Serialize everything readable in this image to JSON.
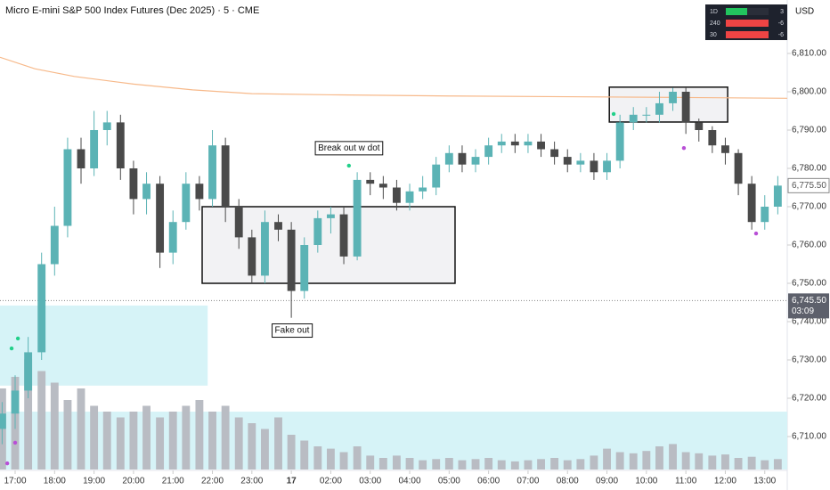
{
  "header": {
    "title": "Micro E-mini S&P 500 Index Futures (Dec 2025) · 5 · CME",
    "currency": "USD"
  },
  "widget": {
    "rows": [
      {
        "label": "1D",
        "value": 3,
        "color": "#22c55e"
      },
      {
        "label": "240",
        "value": -6,
        "color": "#ef4444"
      },
      {
        "label": "30",
        "value": -6,
        "color": "#ef4444"
      }
    ]
  },
  "chart_data": {
    "type": "candlestick",
    "xlim": [
      -0.384,
      19.57
    ],
    "ylim": [
      6701.4,
      6823.95
    ],
    "xticks": [
      {
        "value": 0,
        "label": "17:00"
      },
      {
        "value": 1,
        "label": "18:00"
      },
      {
        "value": 2,
        "label": "19:00"
      },
      {
        "value": 3,
        "label": "20:00"
      },
      {
        "value": 4,
        "label": "21:00"
      },
      {
        "value": 5,
        "label": "22:00"
      },
      {
        "value": 6,
        "label": "23:00"
      },
      {
        "value": 7,
        "label": "17"
      },
      {
        "value": 8,
        "label": "02:00"
      },
      {
        "value": 9,
        "label": "03:00"
      },
      {
        "value": 10,
        "label": "04:00"
      },
      {
        "value": 11,
        "label": "05:00"
      },
      {
        "value": 12,
        "label": "06:00"
      },
      {
        "value": 13,
        "label": "07:00"
      },
      {
        "value": 14,
        "label": "08:00"
      },
      {
        "value": 15,
        "label": "09:00"
      },
      {
        "value": 16,
        "label": "10:00"
      },
      {
        "value": 17,
        "label": "11:00"
      },
      {
        "value": 18,
        "label": "12:00"
      },
      {
        "value": 19,
        "label": "13:00"
      }
    ],
    "yticks": [
      {
        "value": 6810,
        "label": "6,810.00"
      },
      {
        "value": 6800,
        "label": "6,800.00"
      },
      {
        "value": 6790,
        "label": "6,790.00"
      },
      {
        "value": 6780,
        "label": "6,780.00"
      },
      {
        "value": 6770,
        "label": "6,770.00"
      },
      {
        "value": 6760,
        "label": "6,760.00"
      },
      {
        "value": 6750,
        "label": "6,750.00"
      },
      {
        "value": 6740,
        "label": "6,740.00"
      },
      {
        "value": 6730,
        "label": "6,730.00"
      },
      {
        "value": 6720,
        "label": "6,720.00"
      },
      {
        "value": 6710,
        "label": "6,710.00"
      }
    ],
    "x": [
      -0.33,
      0,
      0.33,
      0.67,
      1,
      1.33,
      1.67,
      2,
      2.33,
      2.67,
      3,
      3.33,
      3.67,
      4,
      4.33,
      4.67,
      5,
      5.33,
      5.67,
      6,
      6.33,
      6.67,
      7,
      7.33,
      7.67,
      8,
      8.33,
      8.67,
      9,
      9.33,
      9.67,
      10,
      10.33,
      10.67,
      11,
      11.33,
      11.67,
      12,
      12.33,
      12.67,
      13,
      13.33,
      13.67,
      14,
      14.33,
      14.67,
      15,
      15.33,
      15.67,
      16,
      16.33,
      16.67,
      17,
      17.33,
      17.67,
      18,
      18.33,
      18.67,
      19,
      19.33
    ],
    "open": [
      6712,
      6716,
      6722,
      6732,
      6755,
      6765,
      6785,
      6780,
      6790,
      6792,
      6780,
      6772,
      6776,
      6758,
      6766,
      6776,
      6772,
      6786,
      6770,
      6762,
      6752,
      6766,
      6764,
      6748,
      6760,
      6767,
      6768,
      6757,
      6777,
      6776,
      6775,
      6771,
      6774,
      6775,
      6781,
      6784,
      6781,
      6783,
      6786,
      6787,
      6786,
      6787,
      6785,
      6783,
      6781,
      6782,
      6779,
      6782,
      6792,
      6794,
      6794,
      6797,
      6800,
      6792,
      6790,
      6786,
      6784,
      6776,
      6766,
      6770
    ],
    "high": [
      6719,
      6726,
      6736,
      6758,
      6770,
      6788,
      6788,
      6795,
      6795,
      6794,
      6782,
      6779,
      6778,
      6769,
      6779,
      6778,
      6790,
      6788,
      6772,
      6764,
      6769,
      6768,
      6766,
      6762,
      6769,
      6770,
      6770,
      6779,
      6779,
      6778,
      6777,
      6776,
      6778,
      6783,
      6786,
      6786,
      6785,
      6788,
      6789,
      6789,
      6789,
      6789,
      6787,
      6785,
      6784,
      6784,
      6784,
      6794,
      6796,
      6796,
      6800,
      6801,
      6801,
      6793,
      6791,
      6788,
      6785,
      6778,
      6773,
      6778
    ],
    "low": [
      6708,
      6712,
      6720,
      6730,
      6752,
      6762,
      6776,
      6778,
      6786,
      6777,
      6768,
      6768,
      6754,
      6755,
      6764,
      6769,
      6770,
      6766,
      6759,
      6750,
      6750,
      6761,
      6741,
      6746,
      6758,
      6763,
      6755,
      6756,
      6773,
      6772,
      6769,
      6769,
      6772,
      6773,
      6779,
      6779,
      6779,
      6781,
      6784,
      6784,
      6784,
      6783,
      6781,
      6779,
      6779,
      6777,
      6777,
      6780,
      6790,
      6792,
      6792,
      6795,
      6789,
      6787,
      6784,
      6781,
      6773,
      6764,
      6764,
      6768
    ],
    "close": [
      6716,
      6722,
      6732,
      6755,
      6765,
      6785,
      6780,
      6790,
      6792,
      6780,
      6772,
      6776,
      6758,
      6766,
      6776,
      6772,
      6786,
      6770,
      6762,
      6752,
      6766,
      6764,
      6748,
      6760,
      6767,
      6768,
      6757,
      6777,
      6776,
      6775,
      6771,
      6774,
      6775,
      6781,
      6784,
      6781,
      6783,
      6786,
      6787,
      6786,
      6787,
      6785,
      6783,
      6781,
      6782,
      6779,
      6782,
      6792,
      6794,
      6794,
      6797,
      6800,
      6792,
      6790,
      6786,
      6784,
      6776,
      6766,
      6770,
      6775.5
    ],
    "volume": [
      70,
      80,
      95,
      85,
      75,
      60,
      70,
      55,
      50,
      45,
      50,
      55,
      45,
      50,
      55,
      60,
      50,
      55,
      45,
      40,
      35,
      45,
      30,
      25,
      20,
      18,
      15,
      20,
      12,
      10,
      12,
      10,
      8,
      9,
      10,
      8,
      9,
      10,
      8,
      7,
      8,
      9,
      10,
      8,
      9,
      12,
      18,
      15,
      14,
      16,
      20,
      22,
      15,
      14,
      12,
      13,
      10,
      11,
      8,
      9
    ],
    "up_color": "#5bb3b5",
    "down_color": "#4a4a4a",
    "volume_color": "#b9bcc3",
    "lines": [
      {
        "color": "#f7b98a",
        "x": [
          -0.384,
          0.5,
          1.5,
          3,
          4.5,
          6,
          8,
          11,
          14,
          17,
          19.57
        ],
        "values": [
          6809,
          6806,
          6804,
          6802,
          6800.5,
          6799.5,
          6799.2,
          6798.9,
          6798.7,
          6798.5,
          6798.3
        ]
      }
    ],
    "zones": [
      {
        "x": [
          -0.384,
          4.88
        ],
        "y": [
          6723.3,
          6744.2
        ],
        "color": "#d6f3f7"
      },
      {
        "x": [
          -0.384,
          19.57
        ],
        "y": [
          6701.4,
          6716.5
        ],
        "color": "#d6f3f7"
      }
    ],
    "boxes": [
      {
        "x": [
          4.74,
          11.15
        ],
        "y": [
          6750,
          6770
        ],
        "color": "#f2f2f4"
      },
      {
        "x": [
          15.06,
          18.06
        ],
        "y": [
          6792.1,
          6801.2
        ],
        "color": "#f2f2f4"
      }
    ],
    "annotations": [
      {
        "text": "Break out w dot",
        "x": 8.46,
        "y": 6785.3
      },
      {
        "text": "Fake out",
        "x": 7.02,
        "y": 6737.7
      }
    ],
    "dots": [
      {
        "x": 8.46,
        "y": 6780.7,
        "color": "#22d08a"
      },
      {
        "x": 15.17,
        "y": 6794.2,
        "color": "#22d08a"
      },
      {
        "x": 0.07,
        "y": 6735.6,
        "color": "#22d08a"
      },
      {
        "x": -0.09,
        "y": 6733,
        "color": "#22d08a"
      },
      {
        "x": 16.95,
        "y": 6785.3,
        "color": "#b84fd6"
      },
      {
        "x": 18.78,
        "y": 6763,
        "color": "#b84fd6"
      },
      {
        "x": 0,
        "y": 6708.4,
        "color": "#b84fd6"
      },
      {
        "x": -0.2,
        "y": 6703,
        "color": "#b84fd6"
      }
    ],
    "price_tags": [
      {
        "value": 6775.5,
        "label": "6,775.50"
      },
      {
        "value": 6745.5,
        "label": "6,745.50",
        "countdown": "03:09"
      }
    ]
  }
}
